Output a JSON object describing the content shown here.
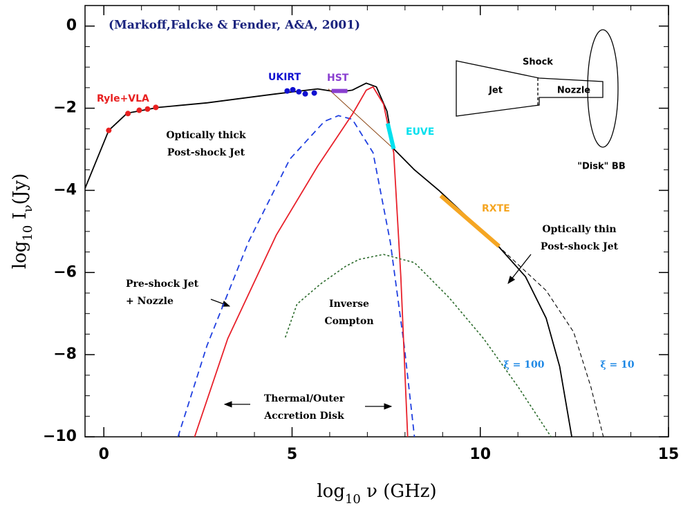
{
  "chart_data": {
    "type": "line",
    "title": "(Markoff,Falcke & Fender, A&A, 2001)",
    "title_color": "#1a237e",
    "xlabel": [
      {
        "text": "log"
      },
      {
        "text": "10",
        "sub": true
      },
      {
        "text": " ν (GHz)"
      }
    ],
    "ylabel": [
      {
        "text": "log"
      },
      {
        "text": "10",
        "sub": true
      },
      {
        "text": " I"
      },
      {
        "text": "ν",
        "sub": true
      },
      {
        "text": "(Jy)"
      }
    ],
    "xlim": [
      -0.5,
      15
    ],
    "ylim": [
      -10,
      0.5
    ],
    "xticks": [
      0,
      5,
      10,
      15
    ],
    "yticks": [
      0,
      {
        "value": -2,
        "label": "−2"
      },
      {
        "value": -4,
        "label": "−4"
      },
      {
        "value": -6,
        "label": "−6"
      },
      {
        "value": -8,
        "label": "−8"
      },
      {
        "value": -10,
        "label": "−10"
      }
    ],
    "minor_ticks": true,
    "series": [
      {
        "color": "#000000",
        "style": "solid",
        "x": [
          -0.5,
          0.13,
          0.62,
          1.45,
          2.74,
          4.58,
          5.68,
          6.23,
          6.6,
          6.97,
          7.24,
          7.52,
          7.7,
          8.25,
          8.9,
          10.46,
          11.2,
          11.75,
          12.11,
          12.43
        ],
        "values": [
          -3.95,
          -2.54,
          -2.12,
          -1.98,
          -1.87,
          -1.65,
          -1.53,
          -1.61,
          -1.56,
          -1.39,
          -1.48,
          -2.07,
          -2.99,
          -3.5,
          -4.0,
          -5.34,
          -6.1,
          -7.11,
          -8.29,
          -10
        ]
      },
      {
        "color": "#000000",
        "style": "thin-dashed",
        "x": [
          10.46,
          11.75,
          12.48,
          12.94,
          13.27
        ],
        "values": [
          -5.34,
          -6.44,
          -7.45,
          -8.79,
          -10
        ]
      },
      {
        "color": "#8b4513",
        "style": "thin",
        "x": [
          5.96,
          7.7
        ],
        "values": [
          -1.53,
          -2.99
        ]
      },
      {
        "color": "#1f3fe0",
        "style": "dashed",
        "x": [
          1.97,
          2.74,
          3.84,
          4.94,
          5.86,
          6.23,
          6.6,
          7.15,
          7.61,
          7.98,
          8.25
        ],
        "values": [
          -10,
          -7.78,
          -5.26,
          -3.24,
          -2.32,
          -2.18,
          -2.27,
          -3.08,
          -5.26,
          -7.78,
          -10
        ]
      },
      {
        "color": "#e8202a",
        "style": "solid",
        "x": [
          2.41,
          3.29,
          4.58,
          5.68,
          6.6,
          6.97,
          7.15,
          7.43,
          7.7,
          7.89,
          8.07
        ],
        "values": [
          -10,
          -7.61,
          -5.09,
          -3.41,
          -2.15,
          -1.56,
          -1.48,
          -1.9,
          -3.08,
          -6.1,
          -10
        ]
      },
      {
        "color": "#2a6a2a",
        "style": "dotted",
        "x": [
          4.82,
          5.13,
          5.77,
          6.42,
          6.78,
          7.43,
          8.25,
          9.17,
          10.09,
          11.01,
          11.88
        ],
        "values": [
          -7.58,
          -6.77,
          -6.27,
          -5.85,
          -5.68,
          -5.56,
          -5.76,
          -6.61,
          -7.61,
          -8.79,
          -10
        ]
      },
      {
        "name": "Ryle+VLA",
        "color": "#e82020",
        "style": "points",
        "x": [
          0.13,
          0.64,
          0.94,
          1.16,
          1.38
        ],
        "values": [
          -2.54,
          -2.13,
          -2.05,
          -2.02,
          -1.98
        ]
      },
      {
        "name": "UKIRT",
        "color": "#1010d0",
        "style": "points",
        "x": [
          4.87,
          5.02,
          5.18,
          5.35,
          5.59
        ],
        "values": [
          -1.58,
          -1.55,
          -1.6,
          -1.65,
          -1.63
        ]
      },
      {
        "name": "HST",
        "color": "#8a3fd0",
        "style": "thick",
        "x": [
          6.05,
          6.47
        ],
        "values": [
          -1.58,
          -1.58
        ]
      },
      {
        "name": "EUVE",
        "color": "#00e0ee",
        "style": "thick",
        "x": [
          7.54,
          7.7
        ],
        "values": [
          -2.37,
          -2.99
        ]
      },
      {
        "name": "RXTE",
        "color": "#f5a623",
        "style": "thick",
        "x": [
          8.95,
          10.5
        ],
        "values": [
          -4.13,
          -5.36
        ]
      }
    ],
    "annotations": [
      {
        "lines": [
          "Optically thick",
          "Post-shock Jet"
        ]
      },
      {
        "lines": [
          "Pre-shock Jet",
          "+ Nozzle"
        ]
      },
      {
        "lines": [
          "Inverse",
          "Compton"
        ]
      },
      {
        "lines": [
          "Thermal/Outer",
          "Accretion Disk"
        ]
      },
      {
        "lines": [
          "Optically thin",
          "Post-shock Jet"
        ]
      },
      {
        "lines": [
          "ξ = 100"
        ],
        "color": "#1e88e5"
      },
      {
        "lines": [
          "ξ = 10"
        ],
        "color": "#1e88e5"
      },
      {
        "lines": [
          "Shock"
        ]
      },
      {
        "lines": [
          "Jet"
        ]
      },
      {
        "lines": [
          "Nozzle"
        ]
      },
      {
        "lines": [
          "\"Disk\" BB"
        ]
      }
    ]
  }
}
